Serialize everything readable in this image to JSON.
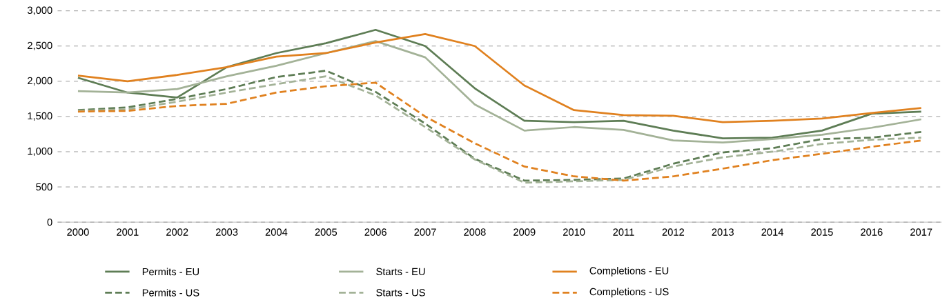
{
  "chart_data": {
    "type": "line",
    "categories": [
      "2000",
      "2001",
      "2002",
      "2003",
      "2004",
      "2005",
      "2006",
      "2007",
      "2008",
      "2009",
      "2010",
      "2011",
      "2012",
      "2013",
      "2014",
      "2015",
      "2016",
      "2017"
    ],
    "series": [
      {
        "name": "Permits - EU",
        "color": "#5e7d55",
        "line_style": "solid",
        "values": [
          2050,
          1840,
          1770,
          2200,
          2400,
          2540,
          2730,
          2500,
          1900,
          1440,
          1420,
          1440,
          1300,
          1190,
          1200,
          1300,
          1540,
          1570
        ]
      },
      {
        "name": "Starts - EU",
        "color": "#a3b297",
        "line_style": "solid",
        "values": [
          1860,
          1840,
          1890,
          2070,
          2220,
          2400,
          2570,
          2340,
          1670,
          1300,
          1350,
          1310,
          1160,
          1130,
          1180,
          1240,
          1340,
          1460
        ]
      },
      {
        "name": "Completions - EU",
        "color": "#e0811f",
        "line_style": "solid",
        "values": [
          2080,
          2000,
          2090,
          2200,
          2350,
          2400,
          2550,
          2670,
          2500,
          1940,
          1590,
          1520,
          1510,
          1420,
          1440,
          1470,
          1550,
          1620
        ]
      },
      {
        "name": "Permits - US",
        "color": "#5e7d55",
        "line_style": "dashed",
        "values": [
          1590,
          1630,
          1750,
          1890,
          2060,
          2150,
          1850,
          1400,
          900,
          590,
          600,
          620,
          830,
          990,
          1050,
          1180,
          1200,
          1280
        ]
      },
      {
        "name": "Starts - US",
        "color": "#a3b297",
        "line_style": "dashed",
        "values": [
          1580,
          1600,
          1710,
          1840,
          1960,
          2070,
          1800,
          1350,
          890,
          560,
          580,
          600,
          790,
          920,
          1000,
          1110,
          1170,
          1200
        ]
      },
      {
        "name": "Completions - US",
        "color": "#e0811f",
        "line_style": "dashed",
        "values": [
          1570,
          1580,
          1650,
          1680,
          1840,
          1930,
          1980,
          1500,
          1120,
          790,
          650,
          590,
          650,
          760,
          880,
          970,
          1070,
          1160
        ]
      }
    ],
    "ylim": [
      0,
      3000
    ],
    "yticks": [
      0,
      500,
      {
        "value": 1000,
        "label": "1,000"
      },
      {
        "value": 1500,
        "label": "1,500"
      },
      {
        "value": 2000,
        "label": "2,000"
      },
      {
        "value": 2500,
        "label": "2,500"
      },
      {
        "value": 3000,
        "label": "3,000"
      }
    ],
    "grid": "y",
    "legend": "bottom",
    "marker": "none"
  }
}
